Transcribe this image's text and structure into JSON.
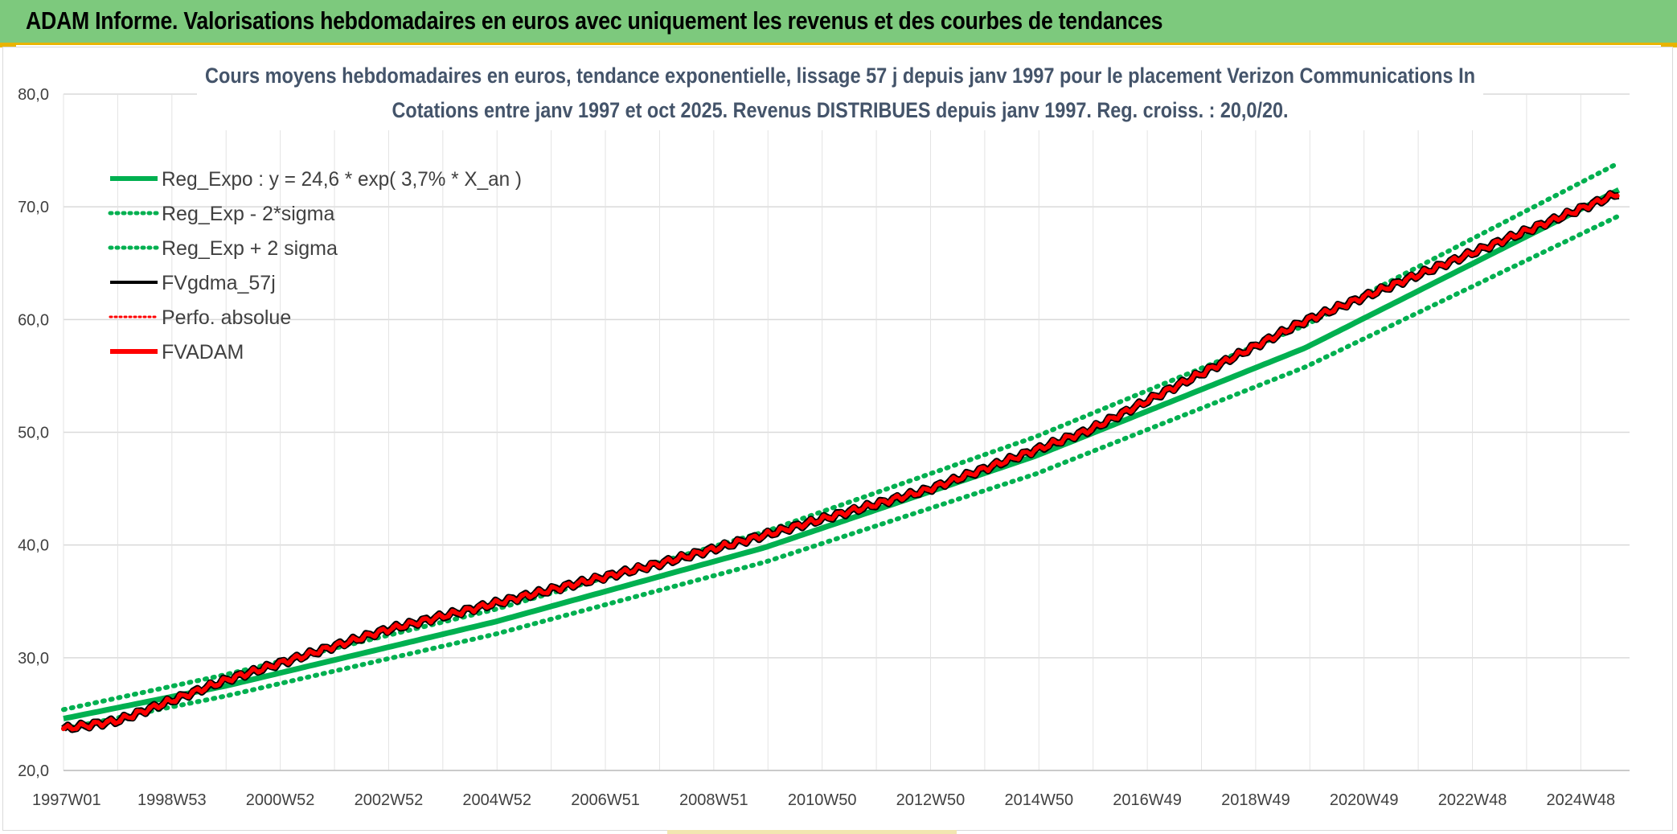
{
  "banner": {
    "title": "ADAM Informe. Valorisations hebdomadaires en euros avec uniquement les revenus et des courbes de tendances"
  },
  "colors": {
    "banner_bg": "#7dc97d",
    "accent": "#e9b400",
    "green_series": "#00b050",
    "red_series": "#ff0000",
    "black_series": "#000000",
    "title_text": "#44546a"
  },
  "chart_data": {
    "type": "line",
    "title_lines": [
      "Cours moyens hebdomadaires en euros, tendance exponentielle, lissage 57 j depuis janv 1997 pour le placement Verizon Communications In",
      "Cotations entre janv 1997 et oct 2025. Revenus DISTRIBUES depuis janv 1997. Reg. croiss. : 20,0/20."
    ],
    "x_tick_labels": [
      "1997W01",
      "1998W53",
      "2000W52",
      "2002W52",
      "2004W52",
      "2006W51",
      "2008W51",
      "2010W50",
      "2012W50",
      "2014W50",
      "2016W49",
      "2018W49",
      "2020W49",
      "2022W48",
      "2024W48"
    ],
    "x_range_years": [
      1997.0,
      2026.0
    ],
    "ylim": [
      20,
      80
    ],
    "y_ticks": [
      "20,0",
      "30,0",
      "40,0",
      "50,0",
      "60,0",
      "70,0",
      "80,0"
    ],
    "grid": true,
    "legend_position": "top-left",
    "series": [
      {
        "name": "Reg_Expo : y = 24,6 * exp( 3,7% *  X_an )",
        "style": "solid-thick",
        "color": "#00b050",
        "x": [
          1997.0,
          2000.0,
          2005.0,
          2010.0,
          2015.0,
          2020.0,
          2025.8
        ],
        "y": [
          24.6,
          27.5,
          33.2,
          39.8,
          47.9,
          57.5,
          71.5
        ]
      },
      {
        "name": "Reg_Exp - 2*sigma",
        "style": "dotted",
        "color": "#00b050",
        "x": [
          1997.0,
          2000.0,
          2005.0,
          2010.0,
          2015.0,
          2020.0,
          2025.8
        ],
        "y": [
          23.7,
          26.6,
          32.1,
          38.5,
          46.3,
          55.8,
          69.2
        ]
      },
      {
        "name": "Reg_Exp + 2 sigma",
        "style": "dotted",
        "color": "#00b050",
        "x": [
          1997.0,
          2000.0,
          2005.0,
          2010.0,
          2015.0,
          2020.0,
          2025.8
        ],
        "y": [
          25.4,
          28.5,
          34.3,
          41.2,
          49.6,
          59.5,
          73.9
        ]
      },
      {
        "name": "FVgdma_57j",
        "style": "solid",
        "color": "#000000",
        "x": [
          1997.0,
          1998.0,
          2000.0,
          2003.0,
          2006.0,
          2008.0,
          2010.0,
          2013.0,
          2016.0,
          2020.0,
          2025.8
        ],
        "y": [
          23.7,
          24.4,
          28.0,
          32.5,
          36.0,
          38.3,
          40.9,
          44.9,
          50.2,
          59.9,
          71.2
        ]
      },
      {
        "name": "Perfo. absolue",
        "style": "dotted",
        "color": "#ff0000",
        "x": [
          1997.0,
          1998.0,
          2000.0,
          2003.0,
          2006.0,
          2008.0,
          2010.0,
          2013.0,
          2016.0,
          2020.0,
          2025.8
        ],
        "y": [
          23.7,
          24.4,
          28.0,
          32.5,
          36.0,
          38.3,
          40.9,
          44.9,
          50.2,
          59.9,
          71.2
        ]
      },
      {
        "name": "FVADAM",
        "style": "solid-thick",
        "color": "#ff0000",
        "x": [
          1997.0,
          1998.0,
          2000.0,
          2003.0,
          2006.0,
          2008.0,
          2010.0,
          2013.0,
          2016.0,
          2020.0,
          2025.8
        ],
        "y": [
          23.7,
          24.4,
          28.0,
          32.5,
          36.0,
          38.3,
          40.9,
          44.9,
          50.2,
          59.9,
          71.2
        ]
      }
    ]
  }
}
